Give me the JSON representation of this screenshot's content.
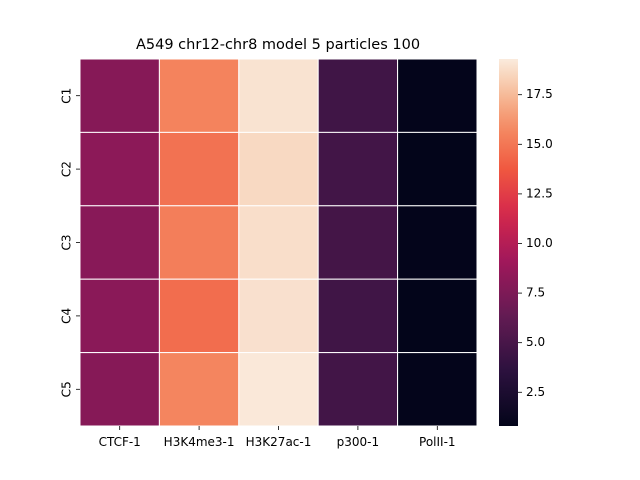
{
  "chart_data": {
    "type": "heatmap",
    "title": "A549 chr12-chr8 model 5 particles 100",
    "xlabel": "",
    "ylabel": "",
    "x_categories": [
      "CTCF-1",
      "H3K4me3-1",
      "H3K27ac-1",
      "p300-1",
      "PolII-1"
    ],
    "y_categories": [
      "C1",
      "C2",
      "C3",
      "C4",
      "C5"
    ],
    "values": [
      [
        7.9,
        15.5,
        19.0,
        4.6,
        0.9
      ],
      [
        8.2,
        14.8,
        18.6,
        4.7,
        0.8
      ],
      [
        8.0,
        15.3,
        18.8,
        4.8,
        0.9
      ],
      [
        8.1,
        14.6,
        18.9,
        4.6,
        0.8
      ],
      [
        7.9,
        15.6,
        19.2,
        4.7,
        0.9
      ]
    ],
    "colorbar": {
      "min": 0.8,
      "max": 19.3,
      "ticks": [
        "2.5",
        "5.0",
        "7.5",
        "10.0",
        "12.5",
        "15.0",
        "17.5"
      ],
      "colormap": "rocket"
    },
    "grid": false
  }
}
